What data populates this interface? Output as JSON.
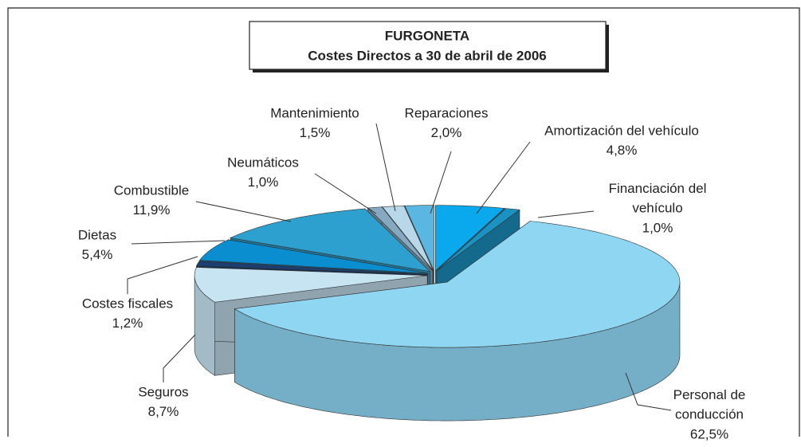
{
  "chart_data": {
    "type": "pie",
    "title": "FURGONETA",
    "subtitle": "Costes Directos a 30 de abril de 2006",
    "categories": [
      "Amortización del vehículo",
      "Financiación del\nvehículo",
      "Personal de\nconducción",
      "Seguros",
      "Costes fiscales",
      "Dietas",
      "Combustible",
      "Neumáticos",
      "Mantenimiento",
      "Reparaciones"
    ],
    "values": [
      4.8,
      1.0,
      62.5,
      8.7,
      1.2,
      5.4,
      11.9,
      1.0,
      1.5,
      2.0
    ],
    "value_labels": [
      "4,8%",
      "1,0%",
      "62,5%",
      "8,7%",
      "1,2%",
      "5,4%",
      "11,9%",
      "1,0%",
      "1,5%",
      "2,0%"
    ],
    "colors": [
      "#0aa8ec",
      "#1a93c2",
      "#8fd6f3",
      "#c6e4f1",
      "#1c3e70",
      "#0a8ed0",
      "#2ea0cf",
      "#86a9c2",
      "#b8d7e8",
      "#5ab7e2"
    ]
  }
}
